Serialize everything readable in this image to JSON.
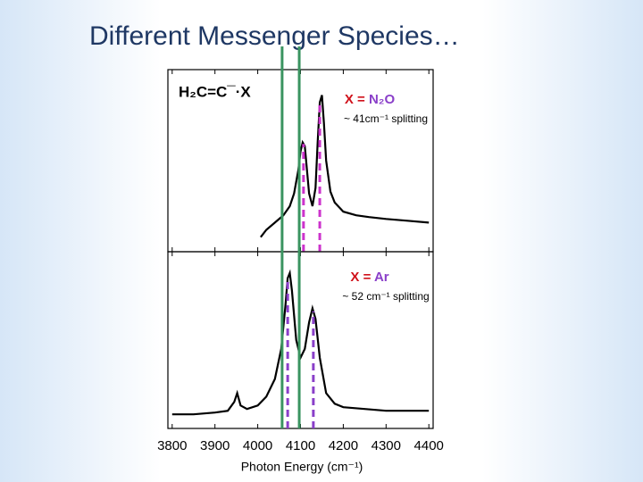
{
  "title": "Different Messenger Species…",
  "reference_lines": [
    {
      "x": 4057,
      "color": "#3a9460"
    },
    {
      "x": 4097,
      "color": "#3a9460"
    }
  ],
  "chart_data": [
    {
      "type": "line",
      "species": "H₂C=C¯·X",
      "messenger_prefix": "X = ",
      "messenger": "N₂O",
      "messenger_color": "#8a3fc9",
      "prefix_color": "#d0121b",
      "splitting": "~ 41cm⁻¹ splitting",
      "x": [
        4007,
        4020,
        4040,
        4060,
        4075,
        4085,
        4095,
        4100,
        4105,
        4110,
        4115,
        4120,
        4128,
        4135,
        4140,
        4145,
        4150,
        4155,
        4160,
        4170,
        4180,
        4200,
        4230,
        4260,
        4300,
        4350,
        4400
      ],
      "series": [
        {
          "color": "#000000",
          "values": [
            0.08,
            0.12,
            0.16,
            0.2,
            0.25,
            0.32,
            0.45,
            0.55,
            0.6,
            0.58,
            0.45,
            0.32,
            0.25,
            0.35,
            0.6,
            0.82,
            0.86,
            0.7,
            0.5,
            0.33,
            0.27,
            0.22,
            0.2,
            0.19,
            0.18,
            0.17,
            0.16
          ]
        }
      ],
      "markers": [
        {
          "x": 4107,
          "color": "#cc33cc"
        },
        {
          "x": 4145,
          "color": "#cc33cc"
        }
      ],
      "xlim": [
        3790,
        4410
      ],
      "ylim": [
        0,
        1
      ],
      "xticks": [
        3800,
        3900,
        4000,
        4100,
        4200,
        4300,
        4400
      ]
    },
    {
      "type": "line",
      "messenger_prefix": "X = ",
      "messenger": "Ar",
      "messenger_color": "#8a3fc9",
      "prefix_color": "#d0121b",
      "splitting": "~ 52 cm⁻¹ splitting",
      "x": [
        3800,
        3850,
        3900,
        3930,
        3945,
        3952,
        3960,
        3975,
        4000,
        4020,
        4040,
        4055,
        4065,
        4070,
        4075,
        4080,
        4090,
        4100,
        4110,
        4120,
        4128,
        4135,
        4145,
        4160,
        4180,
        4200,
        4250,
        4300,
        4350,
        4400
      ],
      "series": [
        {
          "color": "#000000",
          "values": [
            0.08,
            0.08,
            0.09,
            0.1,
            0.15,
            0.2,
            0.13,
            0.11,
            0.13,
            0.18,
            0.28,
            0.45,
            0.7,
            0.85,
            0.88,
            0.78,
            0.5,
            0.4,
            0.45,
            0.6,
            0.68,
            0.62,
            0.4,
            0.2,
            0.14,
            0.12,
            0.11,
            0.1,
            0.1,
            0.1
          ]
        }
      ],
      "markers": [
        {
          "x": 4070,
          "color": "#8a3fc9"
        },
        {
          "x": 4130,
          "color": "#8a3fc9"
        }
      ],
      "xlim": [
        3790,
        4410
      ],
      "ylim": [
        0,
        1
      ],
      "xticks": [
        3800,
        3900,
        4000,
        4100,
        4200,
        4300,
        4400
      ],
      "xlabel": "Photon Energy (cm⁻¹)"
    }
  ]
}
